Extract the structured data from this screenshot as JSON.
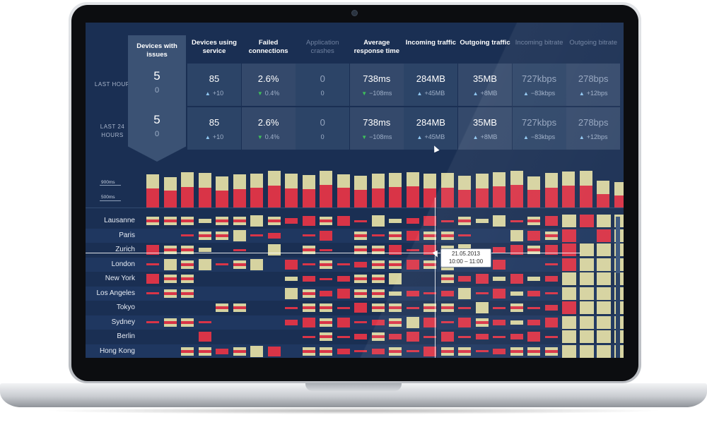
{
  "row_labels": {
    "last_hour": "LAST HOUR",
    "last_24_hours": "LAST 24 HOURS"
  },
  "featured": {
    "header": "Devices with issues",
    "last_hour": {
      "value": "5",
      "sub": "0"
    },
    "last_24_hours": {
      "value": "5",
      "sub": "0"
    }
  },
  "metrics": [
    {
      "header": "Devices using service",
      "dim": false,
      "h_val": "85",
      "h_chg": "+10",
      "h_dir": "up",
      "d_val": "85",
      "d_chg": "+10",
      "d_dir": "up"
    },
    {
      "header": "Failed connections",
      "dim": false,
      "h_val": "2.6%",
      "h_chg": "0.4%",
      "h_dir": "down",
      "d_val": "2.6%",
      "d_chg": "0.4%",
      "d_dir": "down"
    },
    {
      "header": "Application crashes",
      "dim": true,
      "h_val": "0",
      "h_chg": "0",
      "h_dir": "none",
      "d_val": "0",
      "d_chg": "0",
      "d_dir": "none"
    },
    {
      "header": "Average response time",
      "dim": false,
      "h_val": "738ms",
      "h_chg": "−108ms",
      "h_dir": "down",
      "d_val": "738ms",
      "d_chg": "−108ms",
      "d_dir": "down"
    },
    {
      "header": "Incoming traffic",
      "dim": false,
      "h_val": "284MB",
      "h_chg": "+45MB",
      "h_dir": "up",
      "d_val": "284MB",
      "d_chg": "+45MB",
      "d_dir": "up"
    },
    {
      "header": "Outgoing traffic",
      "dim": false,
      "h_val": "35MB",
      "h_chg": "+8MB",
      "h_dir": "up",
      "d_val": "35MB",
      "d_chg": "+8MB",
      "d_dir": "up"
    },
    {
      "header": "Incoming bitrate",
      "dim": true,
      "h_val": "727kbps",
      "h_chg": "−83kbps",
      "h_dir": "up",
      "d_val": "727kbps",
      "d_chg": "−83kbps",
      "d_dir": "up"
    },
    {
      "header": "Outgoing bitrate",
      "dim": true,
      "h_val": "278bps",
      "h_chg": "+12bps",
      "h_dir": "up",
      "d_val": "278bps",
      "d_chg": "+12bps",
      "d_dir": "up"
    }
  ],
  "histogram": {
    "label_high": "900ms",
    "label_low": "500ms",
    "ylim": [
      0,
      900
    ],
    "values": [
      {
        "total": 820,
        "red": 470
      },
      {
        "total": 780,
        "red": 430
      },
      {
        "total": 860,
        "red": 500
      },
      {
        "total": 840,
        "red": 480
      },
      {
        "total": 790,
        "red": 430
      },
      {
        "total": 820,
        "red": 460
      },
      {
        "total": 830,
        "red": 480
      },
      {
        "total": 880,
        "red": 520
      },
      {
        "total": 830,
        "red": 470
      },
      {
        "total": 810,
        "red": 450
      },
      {
        "total": 880,
        "red": 540
      },
      {
        "total": 820,
        "red": 490
      },
      {
        "total": 800,
        "red": 440
      },
      {
        "total": 830,
        "red": 470
      },
      {
        "total": 850,
        "red": 500
      },
      {
        "total": 860,
        "red": 520
      },
      {
        "total": 830,
        "red": 470
      },
      {
        "total": 850,
        "red": 480
      },
      {
        "total": 800,
        "red": 440
      },
      {
        "total": 830,
        "red": 470
      },
      {
        "total": 860,
        "red": 510
      },
      {
        "total": 880,
        "red": 540
      },
      {
        "total": 790,
        "red": 440
      },
      {
        "total": 850,
        "red": 480
      },
      {
        "total": 870,
        "red": 520
      },
      {
        "total": 880,
        "red": 530
      },
      {
        "total": 720,
        "red": 360
      },
      {
        "total": 700,
        "red": 340
      }
    ]
  },
  "cities": [
    "Lausanne",
    "Paris",
    "Zurich",
    "London",
    "New York",
    "Los Angeles",
    "Tokyo",
    "Sydney",
    "Berlin",
    "Hong Kong"
  ],
  "grid_pattern": [
    "bbbtbbtbrrbrrttrrrbttrbrtrbb",
    "..rbbtrr.rr.brbrbbr..trbr.rb",
    "rbbt.r.t.br.bbrrrbt.rrbrrbbb",
    "rtbtrbt.rrbrrbbrbtrrr..rrbbb",
    "rbb.....trrrbbt..brrtrtrbbbt",
    "rbb.....tbrrbbtrrrtrrtrrbbbb",
    "....bb..rbbrrbbrbbrtrbrrrbbb",
    "rbbr....rrbrrrbtrrrbrtrrbbbb",
    "...r.....rbrrbrrrrrrrrrrbbbb",
    "..bbrbtr.bbrrrbrrbbrrbbbbbbb"
  ],
  "tooltip": {
    "date": "21.05.2013",
    "time": "10:00 – 11:00"
  },
  "colors": {
    "background": "#1a2f53",
    "cell": "#2c4467",
    "red": "#d93447",
    "tan": "#d6d3a0",
    "accent_up": "#8fc6f0",
    "accent_down": "#3fc15a"
  }
}
